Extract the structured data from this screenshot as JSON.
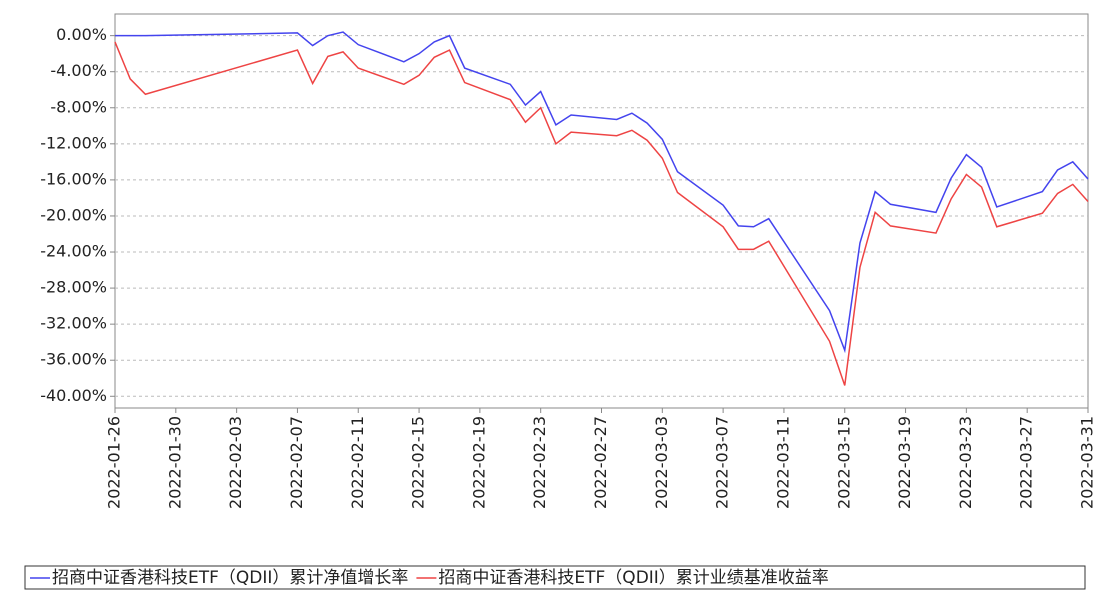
{
  "chart_data": {
    "type": "line",
    "x": [
      "2022-01-26",
      "2022-01-27",
      "2022-01-28",
      "2022-02-07",
      "2022-02-08",
      "2022-02-09",
      "2022-02-10",
      "2022-02-11",
      "2022-02-14",
      "2022-02-15",
      "2022-02-16",
      "2022-02-17",
      "2022-02-18",
      "2022-02-21",
      "2022-02-22",
      "2022-02-23",
      "2022-02-24",
      "2022-02-25",
      "2022-02-28",
      "2022-03-01",
      "2022-03-02",
      "2022-03-03",
      "2022-03-04",
      "2022-03-07",
      "2022-03-08",
      "2022-03-09",
      "2022-03-10",
      "2022-03-14",
      "2022-03-15",
      "2022-03-16",
      "2022-03-17",
      "2022-03-18",
      "2022-03-21",
      "2022-03-22",
      "2022-03-23",
      "2022-03-24",
      "2022-03-25",
      "2022-03-28",
      "2022-03-29",
      "2022-03-30",
      "2022-03-31"
    ],
    "series": [
      {
        "name": "招商中证香港科技ETF（QDII）累计净值增长率",
        "color": "#4444ee",
        "values": [
          0,
          0,
          0,
          0.3,
          -1.1,
          0.0,
          0.4,
          -1.0,
          -2.9,
          -2.0,
          -0.7,
          0.0,
          -3.6,
          -5.4,
          -7.7,
          -6.2,
          -9.9,
          -8.8,
          -9.3,
          -8.6,
          -9.7,
          -11.5,
          -15.1,
          -18.8,
          -21.1,
          -21.2,
          -20.3,
          -30.5,
          -34.9,
          -23.0,
          -17.3,
          -18.7,
          -19.6,
          -15.8,
          -13.2,
          -14.6,
          -19.0,
          -17.3,
          -14.9,
          -14.0,
          -15.9
        ]
      },
      {
        "name": "招商中证香港科技ETF（QDII）累计业绩基准收益率",
        "color": "#ee4444",
        "values": [
          -0.7,
          -4.8,
          -6.5,
          -1.6,
          -5.3,
          -2.3,
          -1.8,
          -3.6,
          -5.4,
          -4.4,
          -2.4,
          -1.6,
          -5.2,
          -7.1,
          -9.6,
          -8.0,
          -12.0,
          -10.7,
          -11.1,
          -10.5,
          -11.6,
          -13.6,
          -17.4,
          -21.2,
          -23.7,
          -23.7,
          -22.8,
          -33.9,
          -38.8,
          -25.7,
          -19.6,
          -21.1,
          -21.9,
          -18.1,
          -15.4,
          -16.8,
          -21.2,
          -19.7,
          -17.5,
          -16.5,
          -18.4
        ]
      }
    ],
    "xlim": [
      "2022-01-26",
      "2022-03-31"
    ],
    "xticks": [
      "2022-01-26",
      "2022-01-30",
      "2022-02-03",
      "2022-02-07",
      "2022-02-11",
      "2022-02-15",
      "2022-02-19",
      "2022-02-23",
      "2022-02-27",
      "2022-03-03",
      "2022-03-07",
      "2022-03-11",
      "2022-03-15",
      "2022-03-19",
      "2022-03-23",
      "2022-03-27",
      "2022-03-31"
    ],
    "ylim": [
      -41.3,
      2.4
    ],
    "yticks": [
      {
        "value": 0,
        "label": "0.00%"
      },
      {
        "value": -4,
        "label": "-4.00%"
      },
      {
        "value": -8,
        "label": "-8.00%"
      },
      {
        "value": -12,
        "label": "-12.00%"
      },
      {
        "value": -16,
        "label": "-16.00%"
      },
      {
        "value": -20,
        "label": "-20.00%"
      },
      {
        "value": -24,
        "label": "-24.00%"
      },
      {
        "value": -28,
        "label": "-28.00%"
      },
      {
        "value": -32,
        "label": "-32.00%"
      },
      {
        "value": -36,
        "label": "-36.00%"
      },
      {
        "value": -40,
        "label": "-40.00%"
      }
    ],
    "grid": true
  }
}
